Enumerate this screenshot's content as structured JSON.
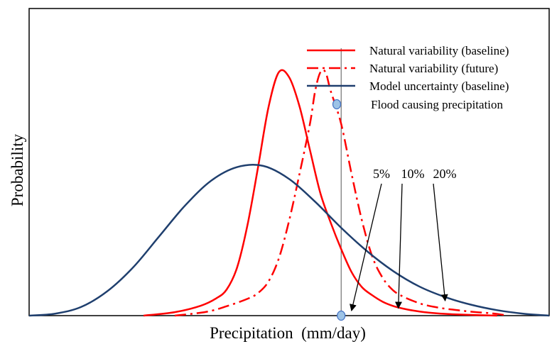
{
  "chart_data": {
    "type": "line",
    "title": "",
    "xlabel": "Precipitation  (mm/day)",
    "ylabel": "Probability",
    "xlim": [
      0,
      100
    ],
    "ylim": [
      0,
      1
    ],
    "grid": false,
    "legend_position": "top-right",
    "series": [
      {
        "name": "Natural variability (baseline)",
        "color": "#ff0000",
        "style": "solid",
        "x": [
          22,
          28,
          33,
          36,
          38,
          40,
          42,
          44,
          46,
          48,
          50,
          52,
          54,
          56,
          58,
          60,
          62,
          64,
          66,
          68,
          70,
          72,
          74,
          76,
          78,
          80,
          82,
          85,
          88,
          90
        ],
        "y": [
          0.0,
          0.014,
          0.04,
          0.07,
          0.106,
          0.195,
          0.367,
          0.597,
          0.839,
          0.983,
          0.963,
          0.845,
          0.669,
          0.495,
          0.375,
          0.269,
          0.176,
          0.115,
          0.082,
          0.056,
          0.039,
          0.028,
          0.02,
          0.014,
          0.01,
          0.007,
          0.005,
          0.003,
          0.001,
          0.0
        ]
      },
      {
        "name": "Natural variability (future)",
        "color": "#ff0000",
        "style": "dash-dot",
        "x": [
          28,
          34,
          38,
          42,
          44,
          46,
          48,
          50,
          52,
          54,
          55,
          56,
          57,
          58,
          60,
          62,
          64,
          66,
          68,
          70,
          72,
          74,
          76,
          78,
          80,
          82,
          84,
          86,
          88,
          90,
          92
        ],
        "y": [
          0.0,
          0.015,
          0.038,
          0.068,
          0.091,
          0.137,
          0.23,
          0.384,
          0.573,
          0.775,
          0.907,
          0.983,
          0.983,
          0.907,
          0.775,
          0.573,
          0.384,
          0.238,
          0.152,
          0.102,
          0.076,
          0.058,
          0.044,
          0.035,
          0.028,
          0.023,
          0.018,
          0.014,
          0.011,
          0.007,
          0.0
        ]
      },
      {
        "name": "Model uncertainty (baseline)",
        "color": "#1f3f6e",
        "style": "solid",
        "x": [
          0,
          5,
          10,
          15,
          20,
          25,
          30,
          35,
          40,
          45,
          50,
          55,
          60,
          65,
          70,
          75,
          80,
          85,
          90,
          95,
          100
        ],
        "y": [
          0.0,
          0.008,
          0.035,
          0.098,
          0.195,
          0.32,
          0.445,
          0.545,
          0.6,
          0.605,
          0.552,
          0.46,
          0.355,
          0.26,
          0.18,
          0.118,
          0.075,
          0.044,
          0.022,
          0.008,
          0.0
        ]
      }
    ],
    "markers": [
      {
        "name": "Flood causing precipitation",
        "x": 60,
        "y": 0,
        "color": "#9dc3e6"
      }
    ],
    "vline": {
      "x": 60
    },
    "annotations": [
      {
        "text": "5%"
      },
      {
        "text": "10%"
      },
      {
        "text": "20%"
      }
    ],
    "arrow_targets": [
      {
        "x": 62,
        "y": 0.02
      },
      {
        "x": 71,
        "y": 0.03
      },
      {
        "x": 80,
        "y": 0.06
      }
    ]
  }
}
